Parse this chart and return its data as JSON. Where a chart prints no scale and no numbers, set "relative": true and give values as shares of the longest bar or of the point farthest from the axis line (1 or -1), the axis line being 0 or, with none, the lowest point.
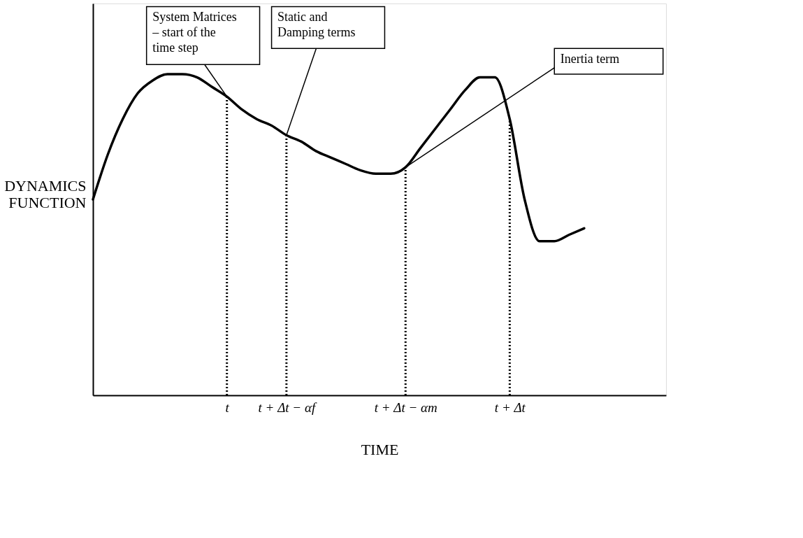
{
  "chart_data": {
    "type": "line",
    "relative": true,
    "xlabel": "TIME",
    "ylabel": "DYNAMICS FUNCTION",
    "categories": [
      null,
      null,
      null,
      null,
      null,
      null,
      null,
      null,
      null,
      "t",
      null,
      null,
      null,
      "t + Δt − αf",
      null,
      null,
      null,
      null,
      null,
      null,
      null,
      "t + Δt − αm",
      null,
      null,
      null,
      null,
      null,
      null,
      "t + Δt",
      null,
      null,
      null,
      null,
      null
    ],
    "series": [
      {
        "color": "#000000",
        "line_style": "solid",
        "values": [
          0.61,
          0.75,
          0.86,
          0.94,
          0.98,
          1.0,
          1.0,
          0.99,
          0.96,
          0.93,
          0.89,
          0.86,
          0.84,
          0.81,
          0.79,
          0.76,
          0.74,
          0.72,
          0.7,
          0.69,
          0.69,
          0.71,
          0.77,
          0.83,
          0.89,
          0.95,
          0.99,
          0.99,
          0.86,
          0.61,
          0.48,
          0.48,
          0.5,
          0.52
        ]
      }
    ],
    "ref_lines": [
      {
        "axis": "x",
        "value": "t",
        "line_style": "dotted"
      },
      {
        "axis": "x",
        "value": "t + Δt − αf",
        "line_style": "dotted"
      },
      {
        "axis": "x",
        "value": "t + Δt − αm",
        "line_style": "dotted"
      },
      {
        "axis": "x",
        "value": "t + Δt",
        "line_style": "dotted"
      }
    ],
    "annotations": [
      {
        "text": "System Matrices – start of the time step",
        "x": "t",
        "y": 0.93
      },
      {
        "text": "Static and Damping terms",
        "x": "t + Δt − αf",
        "y": 0.81
      },
      {
        "text": "Inertia term",
        "x": "t + Δt − αm",
        "y": 0.71
      }
    ]
  }
}
